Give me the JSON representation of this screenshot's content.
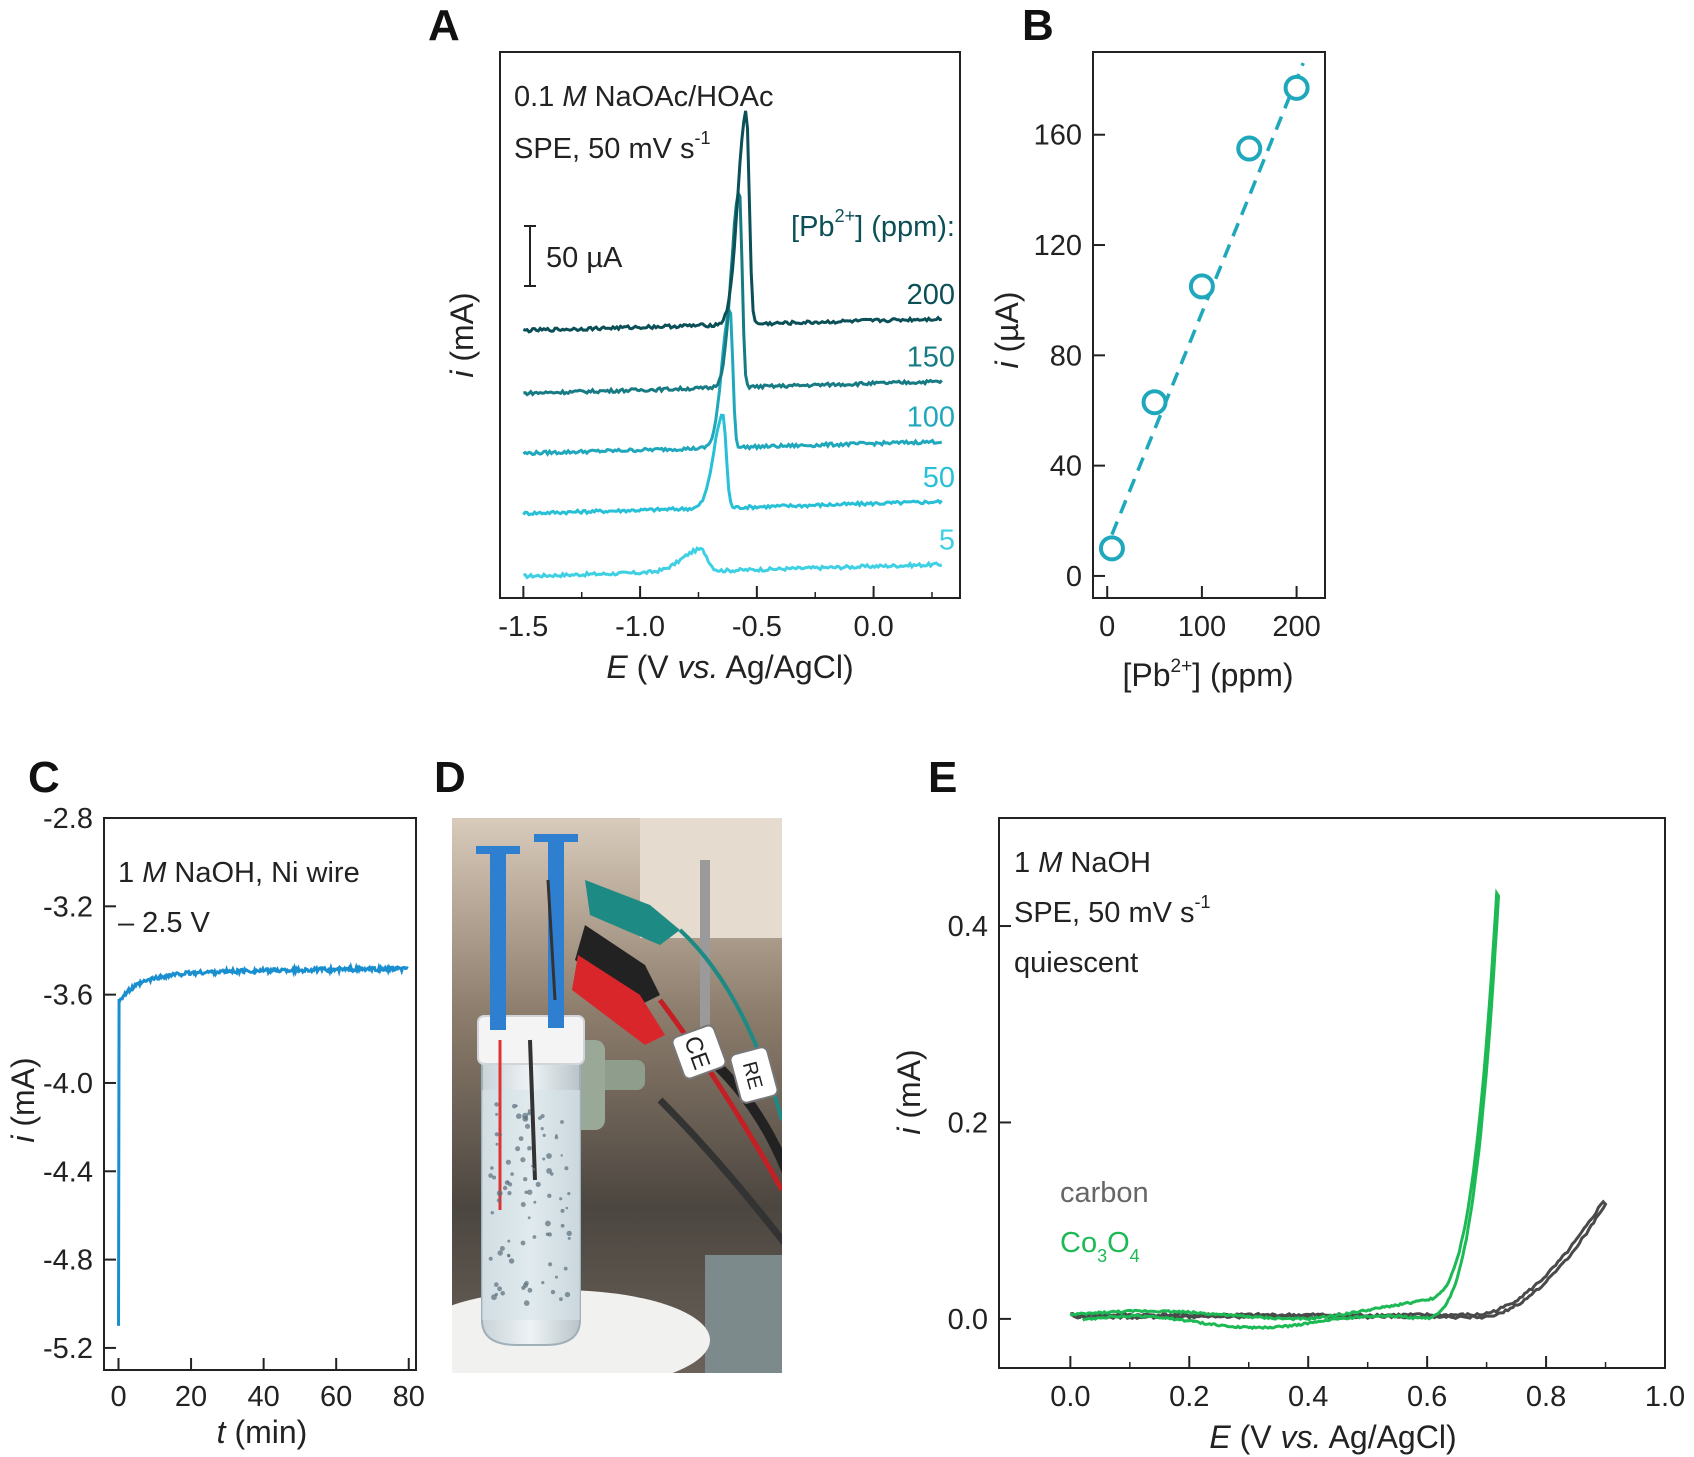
{
  "panels": {
    "A": "A",
    "B": "B",
    "C": "C",
    "D": "D",
    "E": "E"
  },
  "colors": {
    "c200": "#0b4f57",
    "c150": "#177b84",
    "c100": "#1fa8bb",
    "c50": "#27c0d7",
    "c5": "#3fd0e3",
    "blueC": "#1a8fd0",
    "green": "#1db954",
    "gray": "#4a4a4a"
  },
  "chart_data": [
    {
      "panel": "A",
      "type": "line",
      "title": "",
      "xlabel": {
        "var": "E",
        "pre": " (V ",
        "vs": "vs.",
        "post": " Ag/AgCl)"
      },
      "ylabel": {
        "var": "i",
        "rest": " (mA)"
      },
      "xlim": [
        -1.6,
        0.37
      ],
      "xticks": [
        -1.5,
        -1.0,
        -0.5,
        0.0
      ],
      "xtick_labels": [
        "-1.5",
        "-1.0",
        "-0.5",
        "0.0"
      ],
      "ylim": [
        0,
        1
      ],
      "annotations": {
        "line1_a": "0.1 ",
        "line1_M": "M",
        "line1_b": " NaOAc/HOAc",
        "line2": "SPE, 50 mV s",
        "line2_sup": "-1",
        "scale_bar": "50 µA",
        "legend_title_a": "[Pb",
        "legend_title_sup": "2+",
        "legend_title_b": "] (ppm):"
      },
      "series": [
        {
          "name": "5",
          "label": "5",
          "color_key": "c5",
          "base": 0.04,
          "peak_x": -0.74,
          "peak_h": 0.04,
          "peak_w": 0.07
        },
        {
          "name": "50",
          "label": "50",
          "color_key": "c50",
          "base": 0.155,
          "peak_x": -0.645,
          "peak_h": 0.17,
          "peak_w": 0.035
        },
        {
          "name": "100",
          "label": "100",
          "color_key": "c100",
          "base": 0.265,
          "peak_x": -0.615,
          "peak_h": 0.255,
          "peak_w": 0.03
        },
        {
          "name": "150",
          "label": "150",
          "color_key": "c150",
          "base": 0.375,
          "peak_x": -0.575,
          "peak_h": 0.36,
          "peak_w": 0.03
        },
        {
          "name": "200",
          "label": "200",
          "color_key": "c200",
          "base": 0.49,
          "peak_x": -0.545,
          "peak_h": 0.39,
          "peak_w": 0.032
        }
      ]
    },
    {
      "panel": "B",
      "type": "scatter",
      "xlabel": {
        "a": "[Pb",
        "sup": "2+",
        "b": "] (ppm)"
      },
      "ylabel": {
        "var": "i",
        "rest": " (µA)"
      },
      "xlim": [
        -15,
        230
      ],
      "ylim": [
        -8,
        190
      ],
      "xticks": [
        0,
        100,
        200
      ],
      "yticks": [
        0,
        40,
        80,
        120,
        160
      ],
      "x": [
        5,
        50,
        100,
        150,
        200
      ],
      "y": [
        10,
        63,
        105,
        155,
        177
      ],
      "fit": {
        "x": [
          5,
          207
        ],
        "y": [
          15,
          186
        ]
      },
      "color_key": "c100"
    },
    {
      "panel": "C",
      "type": "line",
      "xlabel": {
        "var": "t",
        "rest": " (min)"
      },
      "ylabel": {
        "var": "i",
        "rest": " (mA)"
      },
      "xlim": [
        -4,
        82
      ],
      "ylim": [
        -5.3,
        -2.8
      ],
      "xticks": [
        0,
        20,
        40,
        60,
        80
      ],
      "yticks": [
        -2.8,
        -3.2,
        -3.6,
        -4.0,
        -4.4,
        -4.8,
        -5.2
      ],
      "ytick_labels": [
        "-2.8",
        "-3.2",
        "-3.6",
        "-4.0",
        "-4.4",
        "-4.8",
        "-5.2"
      ],
      "annotations": {
        "line1_a": "1 ",
        "line1_M": "M",
        "line1_b": " NaOH, Ni wire",
        "line2": "– 2.5 V"
      },
      "series": [
        {
          "name": "Ni wire chronoamperometry",
          "color_key": "blueC",
          "t0": 0,
          "i_start": -5.1,
          "i_plateau": -3.5,
          "t_end": 80
        }
      ]
    },
    {
      "panel": "E",
      "type": "line",
      "xlabel": {
        "var": "E",
        "pre": " (V ",
        "vs": "vs.",
        "post": " Ag/AgCl)"
      },
      "ylabel": {
        "var": "i",
        "rest": " (mA)"
      },
      "xlim": [
        -0.12,
        1.0
      ],
      "ylim": [
        -0.05,
        0.51
      ],
      "xticks": [
        0.0,
        0.2,
        0.4,
        0.6,
        0.8,
        1.0
      ],
      "xtick_labels": [
        "0.0",
        "0.2",
        "0.4",
        "0.6",
        "0.8",
        "1.0"
      ],
      "yticks": [
        0.0,
        0.2,
        0.4
      ],
      "ytick_labels": [
        "0.0",
        "0.2",
        "0.4"
      ],
      "annotations": {
        "line1_a": "1 ",
        "line1_M": "M",
        "line1_b": " NaOH",
        "line2": "SPE, 50 mV s",
        "line2_sup": "-1",
        "line3": "quiescent"
      },
      "series": [
        {
          "name": "carbon",
          "label": "carbon",
          "color_key": "gray",
          "x_end": 0.9,
          "i_end": 0.12,
          "onset": 0.68
        },
        {
          "name": "Co3O4",
          "label_a": "Co",
          "label_sub1": "3",
          "label_b": "O",
          "label_sub2": "4",
          "color_key": "green",
          "x_end": 0.72,
          "i_end": 0.44,
          "onset": 0.56
        }
      ]
    }
  ],
  "photo": {
    "label_ce": "CE",
    "label_re": "RE"
  }
}
